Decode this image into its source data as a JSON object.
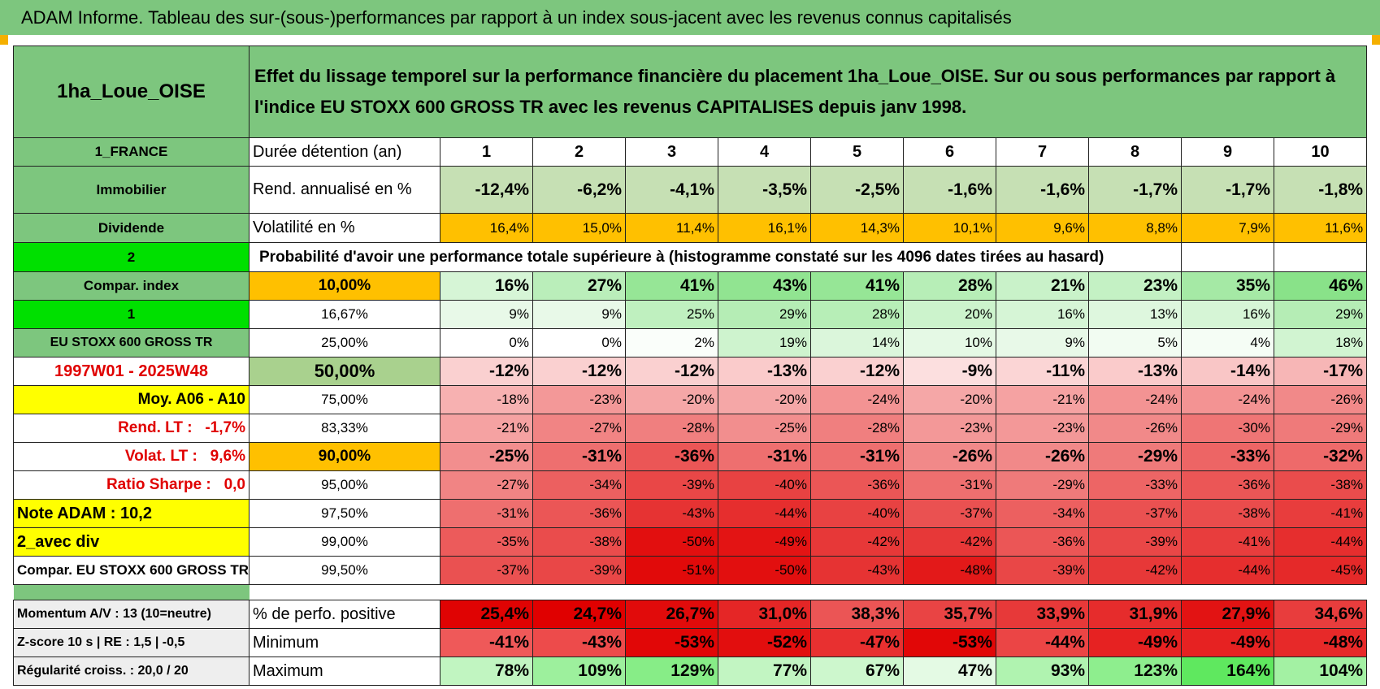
{
  "title": "ADAM Informe. Tableau des sur-(sous-)performances par rapport à un index sous-jacent avec les revenus connus capitalisés",
  "header": {
    "name": "1ha_Loue_OISE",
    "description": "Effet du lissage temporel sur la performance financière du placement 1ha_Loue_OISE. Sur ou sous performances par rapport à l'indice EU STOXX 600 GROSS TR avec les revenus CAPITALISES depuis janv 1998."
  },
  "rows": [
    {
      "label": "1_FRANCE",
      "metric": "Durée détention (an)",
      "values": [
        "1",
        "2",
        "3",
        "4",
        "5",
        "6",
        "7",
        "8",
        "9",
        "10"
      ]
    },
    {
      "label": "Immobilier",
      "metric": "Rend. annualisé en %",
      "values": [
        "-12,4%",
        "-6,2%",
        "-4,1%",
        "-3,5%",
        "-2,5%",
        "-1,6%",
        "-1,6%",
        "-1,7%",
        "-1,7%",
        "-1,8%"
      ]
    },
    {
      "label": "Dividende",
      "metric": "Volatilité en %",
      "values": [
        "16,4%",
        "15,0%",
        "11,4%",
        "16,1%",
        "14,3%",
        "10,1%",
        "9,6%",
        "8,8%",
        "7,9%",
        "11,6%"
      ]
    },
    {
      "label": "2",
      "metric": "Probabilité d'avoir une performance totale supérieure à (histogramme constaté sur les 4096 dates tirées au hasard)"
    },
    {
      "label": "Compar. index",
      "metric": "10,00%",
      "values": [
        "16%",
        "27%",
        "41%",
        "43%",
        "41%",
        "28%",
        "21%",
        "23%",
        "35%",
        "46%"
      ]
    },
    {
      "label": "1",
      "metric": "16,67%",
      "values": [
        "9%",
        "9%",
        "25%",
        "29%",
        "28%",
        "20%",
        "16%",
        "13%",
        "16%",
        "29%"
      ]
    },
    {
      "label": "EU STOXX 600 GROSS TR",
      "metric": "25,00%",
      "values": [
        "0%",
        "0%",
        "2%",
        "19%",
        "14%",
        "10%",
        "9%",
        "5%",
        "4%",
        "18%"
      ]
    },
    {
      "label": "1997W01 - 2025W48",
      "metric": "50,00%",
      "values": [
        "-12%",
        "-12%",
        "-12%",
        "-13%",
        "-12%",
        "-9%",
        "-11%",
        "-13%",
        "-14%",
        "-17%"
      ]
    },
    {
      "label": "Moy. A06 - A10",
      "metric": "75,00%",
      "values": [
        "-18%",
        "-23%",
        "-20%",
        "-20%",
        "-24%",
        "-20%",
        "-21%",
        "-24%",
        "-24%",
        "-26%"
      ]
    },
    {
      "label": "Rend. LT :   -1,7%",
      "metric": "83,33%",
      "values": [
        "-21%",
        "-27%",
        "-28%",
        "-25%",
        "-28%",
        "-23%",
        "-23%",
        "-26%",
        "-30%",
        "-29%"
      ]
    },
    {
      "label": "Volat. LT :   9,6%",
      "metric": "90,00%",
      "values": [
        "-25%",
        "-31%",
        "-36%",
        "-31%",
        "-31%",
        "-26%",
        "-26%",
        "-29%",
        "-33%",
        "-32%"
      ]
    },
    {
      "label": "Ratio Sharpe :   0,0",
      "metric": "95,00%",
      "values": [
        "-27%",
        "-34%",
        "-39%",
        "-40%",
        "-36%",
        "-31%",
        "-29%",
        "-33%",
        "-36%",
        "-38%"
      ]
    },
    {
      "label": "Note ADAM : 10,2",
      "metric": "97,50%",
      "values": [
        "-31%",
        "-36%",
        "-43%",
        "-44%",
        "-40%",
        "-37%",
        "-34%",
        "-37%",
        "-38%",
        "-41%"
      ]
    },
    {
      "label": "2_avec div",
      "metric": "99,00%",
      "values": [
        "-35%",
        "-38%",
        "-50%",
        "-49%",
        "-42%",
        "-42%",
        "-36%",
        "-39%",
        "-41%",
        "-44%"
      ]
    },
    {
      "label": "Compar. EU STOXX 600 GROSS TR",
      "metric": "99,50%",
      "values": [
        "-37%",
        "-39%",
        "-51%",
        "-50%",
        "-43%",
        "-48%",
        "-39%",
        "-42%",
        "-44%",
        "-45%"
      ]
    },
    {
      "label": "Momentum A/V : 13 (10=neutre)",
      "metric": "% de perfo. positive",
      "values": [
        "25,4%",
        "24,7%",
        "26,7%",
        "31,0%",
        "38,3%",
        "35,7%",
        "33,9%",
        "31,9%",
        "27,9%",
        "34,6%"
      ]
    },
    {
      "label": "Z-score 10 s | RE : 1,5 | -0,5",
      "metric": "Minimum",
      "values": [
        "-41%",
        "-43%",
        "-53%",
        "-52%",
        "-47%",
        "-53%",
        "-44%",
        "-49%",
        "-49%",
        "-48%"
      ]
    },
    {
      "label": "Régularité croiss. : 20,0 / 20",
      "metric": "Maximum",
      "values": [
        "78%",
        "109%",
        "129%",
        "77%",
        "67%",
        "47%",
        "93%",
        "123%",
        "164%",
        "104%"
      ]
    }
  ]
}
